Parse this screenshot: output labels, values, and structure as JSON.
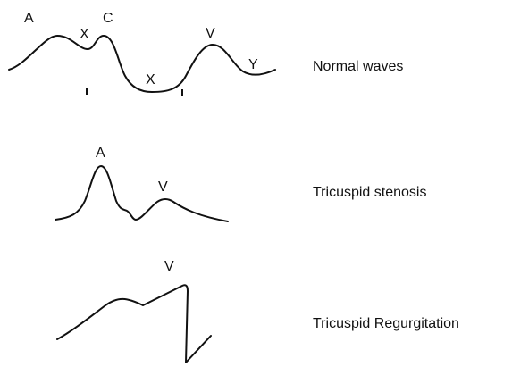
{
  "panels": [
    {
      "caption": "Normal waves",
      "wave_labels": {
        "a": "A",
        "x1": "X",
        "c": "C",
        "x2": "X",
        "v": "V",
        "y": "Y"
      }
    },
    {
      "caption": "Tricuspid stenosis",
      "wave_labels": {
        "a": "A",
        "v": "V"
      }
    },
    {
      "caption": "Tricuspid Regurgitation",
      "wave_labels": {
        "v": "V"
      }
    }
  ]
}
